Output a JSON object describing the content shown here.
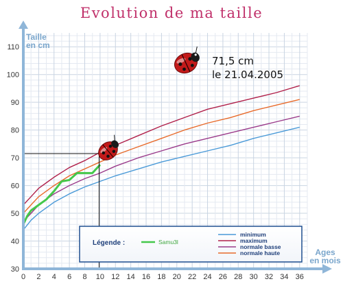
{
  "chart_data": {
    "type": "line",
    "title": "Evolution de ma taille",
    "ylabel_line1": "Taille",
    "ylabel_line2": "en cm",
    "xlabel_line1": "Ages",
    "xlabel_line2": "en mois",
    "xlim": [
      0,
      37
    ],
    "ylim": [
      30,
      115
    ],
    "x_ticks": [
      0,
      2,
      4,
      6,
      8,
      10,
      12,
      14,
      16,
      18,
      20,
      22,
      24,
      26,
      28,
      30,
      32,
      34,
      36
    ],
    "y_ticks": [
      30,
      40,
      50,
      60,
      70,
      80,
      90,
      100,
      110
    ],
    "grid": true,
    "series": [
      {
        "name": "minimum",
        "color": "#4a9ad8",
        "x": [
          0,
          1,
          2,
          3,
          4,
          6,
          8,
          10,
          12,
          15,
          18,
          21,
          24,
          27,
          30,
          33,
          36
        ],
        "y": [
          44,
          47.5,
          50,
          52,
          54,
          57,
          59.5,
          61.5,
          63.5,
          66,
          68.5,
          70.5,
          72.5,
          74.5,
          77,
          79,
          81
        ]
      },
      {
        "name": "maximum",
        "color": "#b0204a",
        "x": [
          0,
          1,
          2,
          3,
          4,
          6,
          8,
          10,
          12,
          15,
          18,
          21,
          24,
          27,
          30,
          33,
          36
        ],
        "y": [
          53,
          56,
          59,
          61,
          63,
          66.5,
          69,
          72,
          74.5,
          78,
          81.5,
          84.5,
          87.5,
          89.5,
          91.5,
          93.5,
          96
        ]
      },
      {
        "name": "normale basse",
        "color": "#9a3a8a",
        "x": [
          0,
          1,
          2,
          3,
          4,
          6,
          8,
          10,
          12,
          15,
          18,
          21,
          24,
          27,
          30,
          33,
          36
        ],
        "y": [
          47,
          50,
          53,
          55,
          57,
          60,
          62.5,
          64.5,
          67,
          70,
          72.5,
          75,
          77,
          79,
          81,
          83,
          85
        ]
      },
      {
        "name": "normale haute",
        "color": "#e86a2a",
        "x": [
          0,
          1,
          2,
          3,
          4,
          6,
          8,
          10,
          12,
          15,
          18,
          21,
          24,
          27,
          30,
          33,
          36
        ],
        "y": [
          50,
          53,
          56,
          58,
          60,
          63.5,
          66,
          68.5,
          71,
          74,
          77,
          80,
          82.5,
          84.5,
          87,
          89,
          91
        ]
      },
      {
        "name": "Samu3l",
        "color": "#44c84a",
        "bold": true,
        "x": [
          0,
          0.5,
          1,
          2,
          3,
          4,
          5,
          6,
          7,
          8,
          9,
          10
        ],
        "y": [
          46,
          49,
          51,
          53,
          55,
          58,
          61.5,
          62,
          64.5,
          64.5,
          64.5,
          67.5
        ]
      }
    ],
    "marker": {
      "x": 10.5,
      "y": 71.5
    },
    "annotation": {
      "value": "71,5 cm",
      "date": "le 21.04.2005"
    },
    "legend": {
      "title": "Légende :",
      "placement": "bottom-right"
    }
  }
}
